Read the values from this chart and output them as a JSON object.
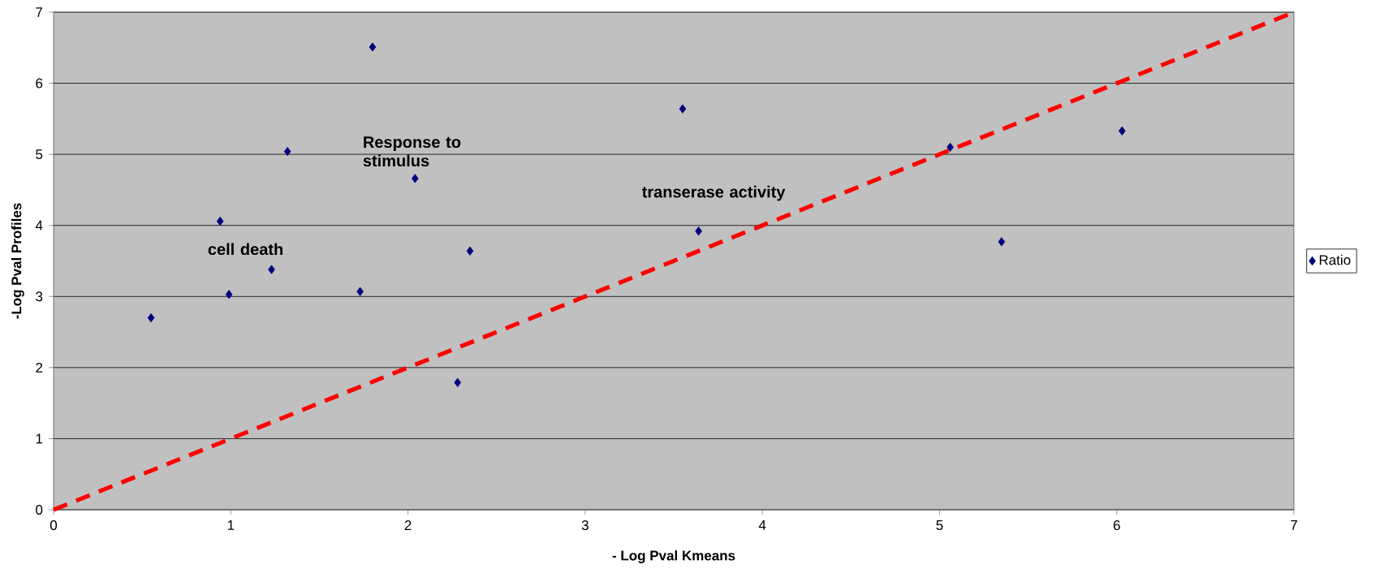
{
  "chart_data": {
    "type": "scatter",
    "xlabel": "- Log Pval Kmeans",
    "ylabel": "-Log Pval Profiles",
    "xlim": [
      0,
      7
    ],
    "ylim": [
      0,
      7
    ],
    "xticks": [
      0,
      1,
      2,
      3,
      4,
      5,
      6,
      7
    ],
    "yticks": [
      0,
      1,
      2,
      3,
      4,
      5,
      6,
      7
    ],
    "grid": "y",
    "legend": "right",
    "marker": "diamond",
    "series": [
      {
        "name": "Ratio",
        "color": "#000080",
        "x": [
          0.55,
          0.94,
          0.99,
          1.23,
          1.32,
          1.73,
          1.8,
          2.04,
          2.28,
          2.35,
          3.55,
          3.64,
          5.06,
          5.35,
          6.03
        ],
        "values": [
          2.7,
          4.06,
          3.03,
          3.38,
          5.04,
          3.07,
          6.51,
          4.66,
          1.79,
          3.64,
          5.64,
          3.92,
          5.1,
          3.77,
          5.33
        ]
      },
      {
        "type": "line",
        "color": "#ff0000",
        "line_style": "dashed",
        "marker": "none",
        "x": [
          0,
          7
        ],
        "values": [
          0,
          7
        ]
      }
    ],
    "annotations": [
      "Response to stimulus",
      "cell death",
      "transerase activity"
    ]
  }
}
